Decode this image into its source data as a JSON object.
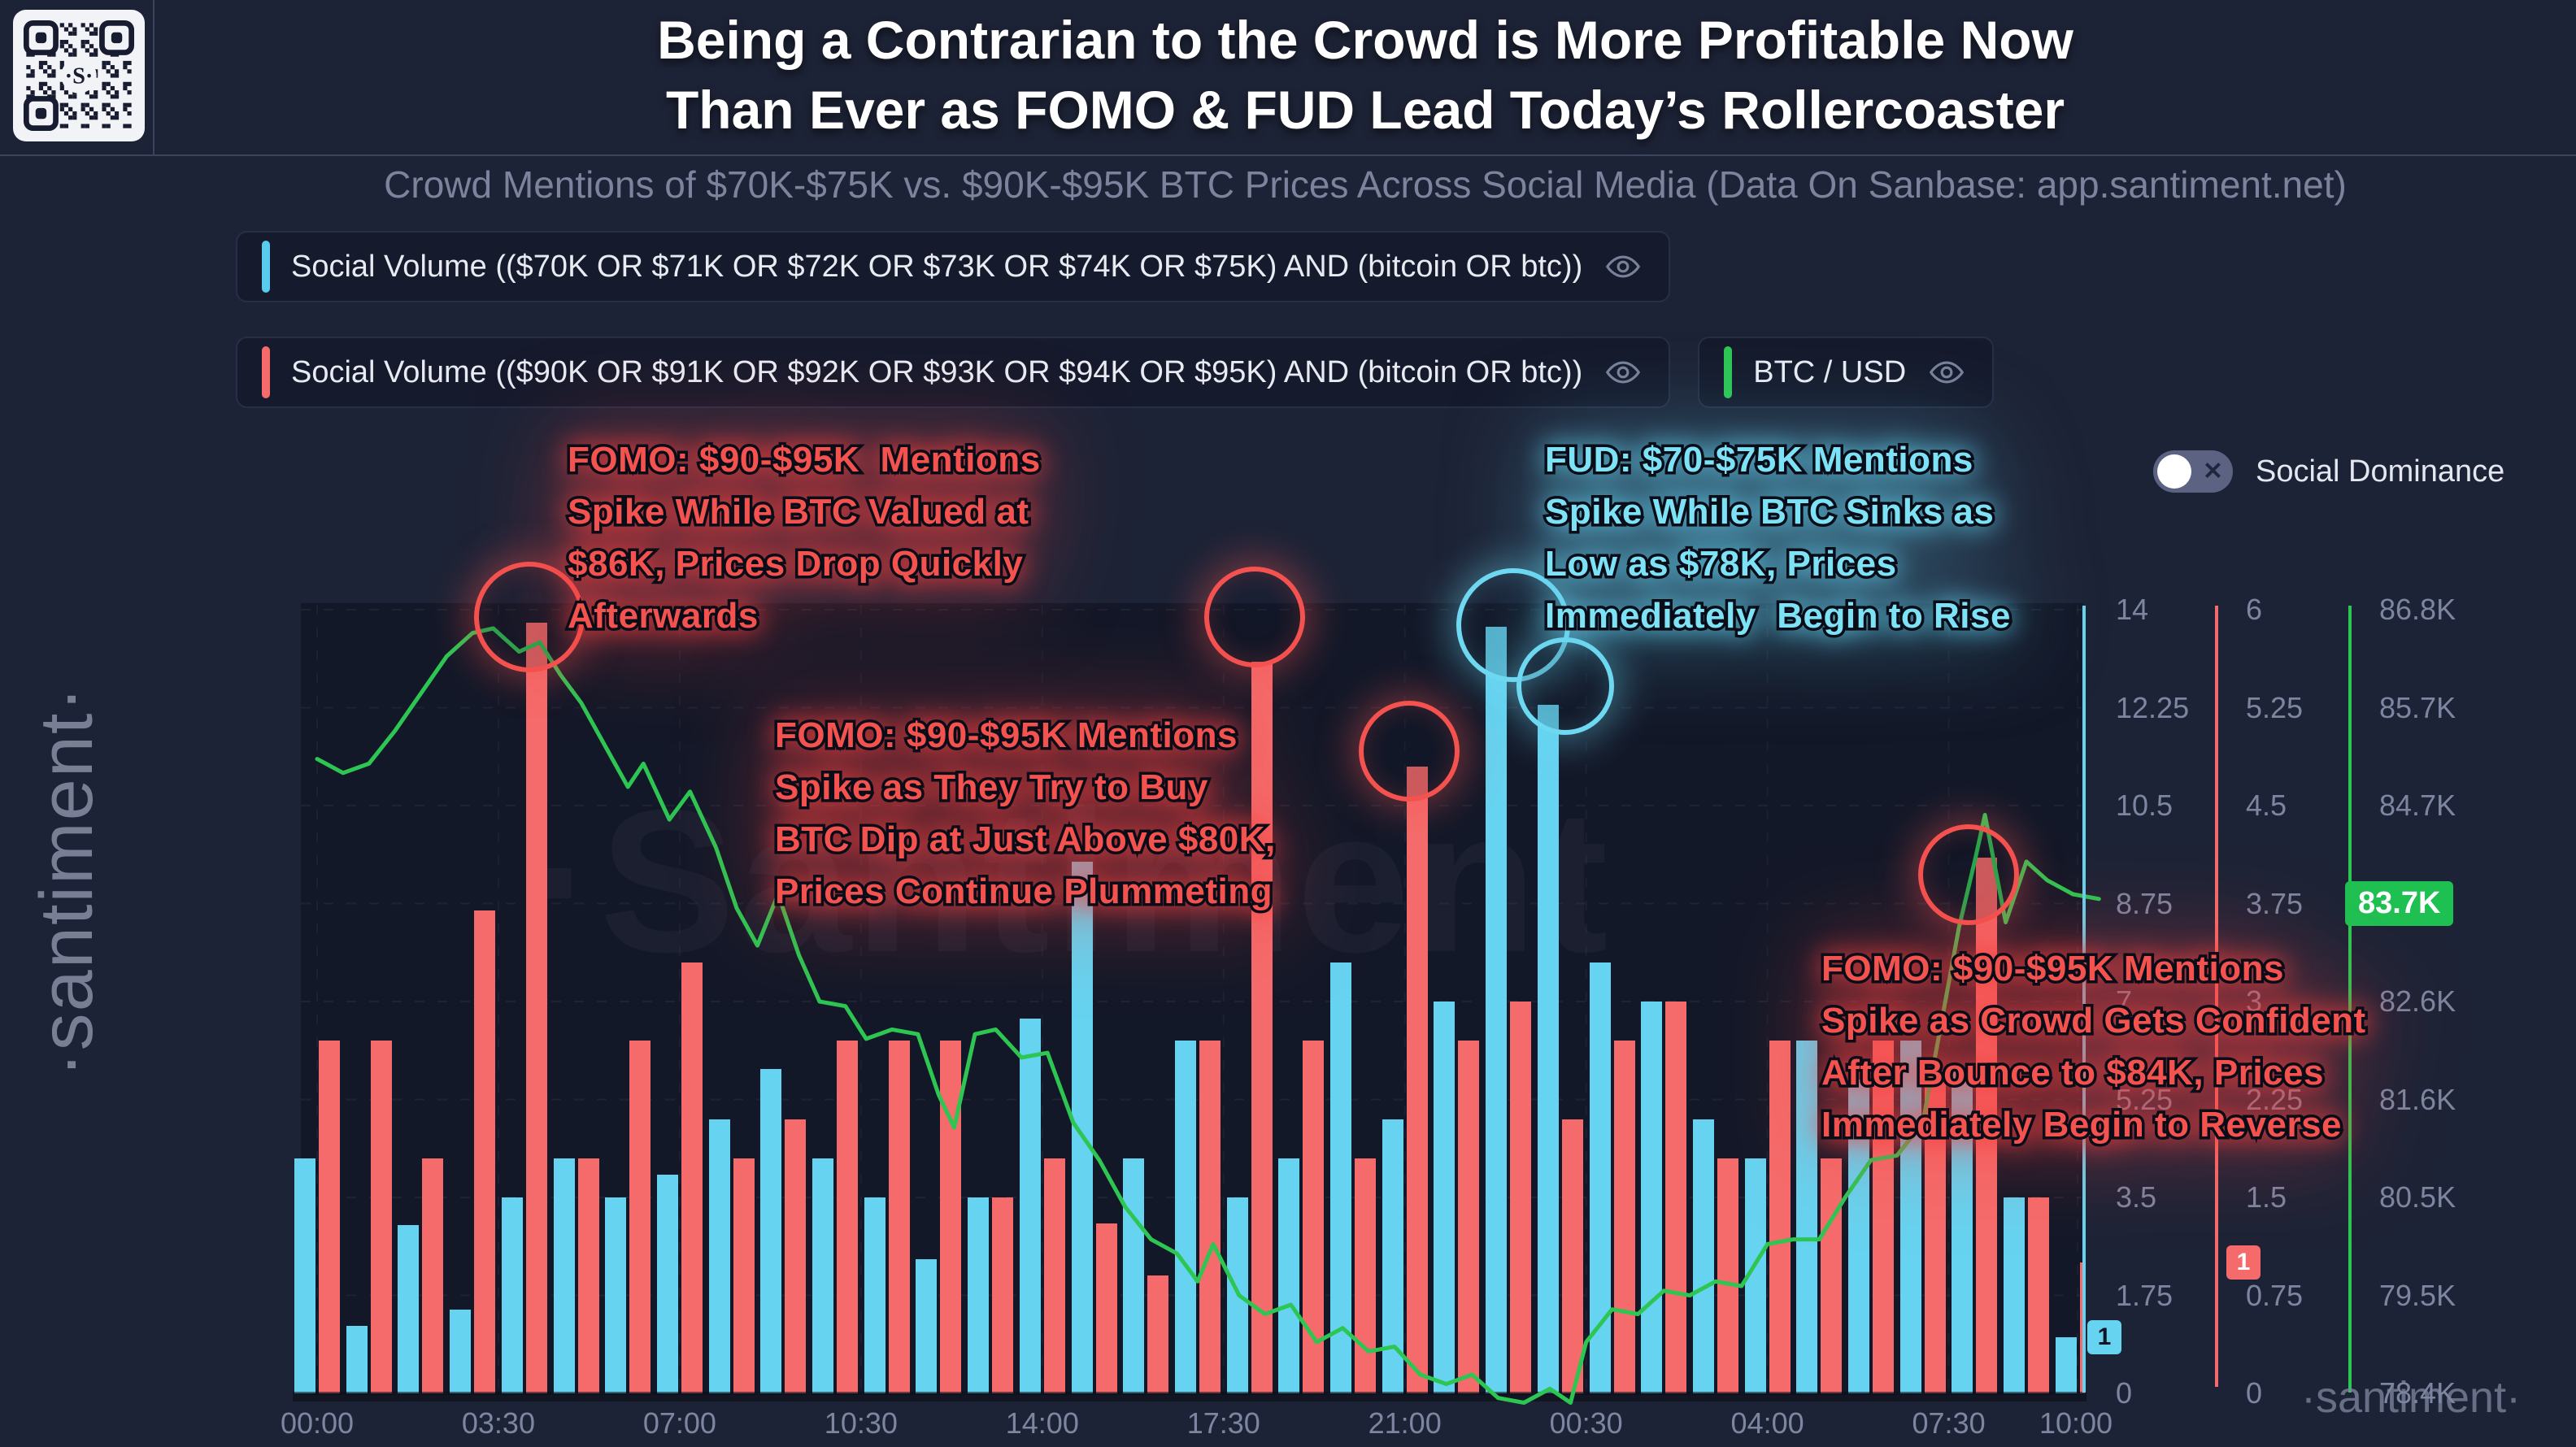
{
  "header": {
    "title_line1": "Being a Contrarian to the Crowd is More Profitable Now",
    "title_line2": "Than Ever as FOMO & FUD Lead Today’s Rollercoaster",
    "subtitle": "Crowd Mentions of $70K-$75K vs. $90K-$95K BTC Prices Across Social Media (Data On Sanbase: app.santiment.net)"
  },
  "legend": {
    "social_volume_70_75": {
      "label": "Social Volume (($70K OR $71K OR $72K OR $73K OR $74K OR $75K) AND (bitcoin OR btc))",
      "accent_color": "#59ccec"
    },
    "social_volume_90_95": {
      "label": "Social Volume (($90K OR $91K OR $92K OR $93K OR $94K OR $95K) AND (bitcoin OR btc))",
      "accent_color": "#f56b6b"
    },
    "btc_usd": {
      "label": "BTC / USD",
      "accent_color": "#2dc653"
    }
  },
  "social_dominance": {
    "label": "Social Dominance",
    "toggle_state": "off"
  },
  "annotations": {
    "fomo_86k": {
      "color": "#f4524f",
      "text": "FOMO: $90-$95K  Mentions\nSpike While BTC Valued at\n$86K, Prices Drop Quickly\nAfterwards"
    },
    "fud_78k": {
      "color": "#7de2f6",
      "text": "FUD: $70-$75K Mentions\nSpike While BTC Sinks as\nLow as $78K, Prices\nImmediately  Begin to Rise"
    },
    "fomo_80k": {
      "color": "#f4524f",
      "text": "FOMO: $90-$95K Mentions\nSpike as They Try to Buy\nBTC Dip at Just Above $80K,\nPrices Continue Plummeting"
    },
    "fomo_84k": {
      "color": "#f4524f",
      "text": "FOMO: $90-$95K Mentions\nSpike as Crowd Gets Confident\nAfter Bounce to $84K, Prices\nImmediately Begin to Reverse"
    }
  },
  "watermark": {
    "center": "·Santiment",
    "sidebar": "·santiment·",
    "bottom_right": "·santiment·"
  },
  "colors": {
    "background": "#1d2336",
    "plot": "#131828",
    "cyan_bar": "#66d3f0",
    "red_bar": "#f56b6b",
    "green_line": "#2dc653",
    "axis_text": "#7d86a0",
    "price_badge": "#1fc052"
  },
  "chart_data": {
    "type": "bar",
    "title": "Crowd Mentions of $70K-$75K vs. $90K-$95K BTC Prices Across Social Media",
    "x_axis": {
      "tick_labels": [
        "00:00",
        "03:30",
        "07:00",
        "10:30",
        "14:00",
        "17:30",
        "21:00",
        "00:30",
        "04:00",
        "07:30",
        "10:00"
      ],
      "tick_hours": [
        0,
        3.5,
        7,
        10.5,
        14,
        17.5,
        21,
        24.5,
        28,
        31.5,
        34.5
      ],
      "hours_span": 34.5
    },
    "axes": {
      "social_volume_70_75": {
        "color": "#66d3f0",
        "range": [
          0,
          14
        ],
        "ticks": [
          "14",
          "12.25",
          "10.5",
          "8.75",
          "7",
          "5.25",
          "3.5",
          "1.75",
          "0"
        ],
        "latest_badge": "1"
      },
      "social_volume_90_95": {
        "color": "#f56b6b",
        "range": [
          0,
          6
        ],
        "ticks": [
          "6",
          "5.25",
          "4.5",
          "3.75",
          "3",
          "2.25",
          "1.5",
          "0.75",
          "0"
        ],
        "latest_badge": "1"
      },
      "btc_usd": {
        "color": "#2dc653",
        "range_k": [
          78.4,
          86.8
        ],
        "ticks": [
          "86.8K",
          "85.7K",
          "84.7K",
          "83.7K",
          "82.6K",
          "81.6K",
          "80.5K",
          "79.5K",
          "78.4K"
        ],
        "latest_badge": "83.7K"
      }
    },
    "series": [
      {
        "name": "Social Volume $70K-$75K mentions",
        "type": "bar",
        "color": "#66d3f0",
        "values": [
          4.2,
          1.2,
          3.0,
          1.5,
          3.5,
          4.2,
          3.5,
          3.9,
          4.9,
          5.8,
          4.2,
          3.5,
          2.4,
          3.5,
          6.7,
          9.5,
          4.2,
          6.3,
          3.5,
          4.2,
          7.7,
          4.9,
          7.0,
          13.7,
          12.3,
          7.7,
          7.0,
          4.9,
          4.2,
          6.3,
          5.6,
          6.3,
          5.8,
          3.5,
          1.0
        ]
      },
      {
        "name": "Social Volume $90K-$95K mentions",
        "type": "bar",
        "color": "#f56b6b",
        "values": [
          2.7,
          2.7,
          1.8,
          3.7,
          5.9,
          1.8,
          2.7,
          3.3,
          1.8,
          2.1,
          2.7,
          2.7,
          2.7,
          1.5,
          1.8,
          1.3,
          0.9,
          2.7,
          5.6,
          2.7,
          1.8,
          4.8,
          2.7,
          3.0,
          2.1,
          2.7,
          3.0,
          1.8,
          2.7,
          1.8,
          2.7,
          2.4,
          4.1,
          1.5,
          1.0
        ]
      },
      {
        "name": "BTC / USD",
        "type": "line",
        "color": "#2dc653",
        "points_hour_priceK": [
          [
            0,
            85.2
          ],
          [
            0.5,
            85.05
          ],
          [
            1,
            85.15
          ],
          [
            1.5,
            85.5
          ],
          [
            2,
            85.9
          ],
          [
            2.5,
            86.3
          ],
          [
            3,
            86.55
          ],
          [
            3.4,
            86.6
          ],
          [
            3.9,
            86.35
          ],
          [
            4.3,
            86.45
          ],
          [
            4.7,
            86.1
          ],
          [
            5.1,
            85.8
          ],
          [
            5.6,
            85.3
          ],
          [
            6,
            84.9
          ],
          [
            6.3,
            85.15
          ],
          [
            6.8,
            84.55
          ],
          [
            7.2,
            84.85
          ],
          [
            7.7,
            84.25
          ],
          [
            8.1,
            83.6
          ],
          [
            8.5,
            83.2
          ],
          [
            8.9,
            83.75
          ],
          [
            9.3,
            83.1
          ],
          [
            9.7,
            82.6
          ],
          [
            10.2,
            82.55
          ],
          [
            10.6,
            82.2
          ],
          [
            11.1,
            82.3
          ],
          [
            11.6,
            82.25
          ],
          [
            12,
            81.6
          ],
          [
            12.3,
            81.25
          ],
          [
            12.7,
            82.25
          ],
          [
            13.1,
            82.3
          ],
          [
            13.6,
            82.0
          ],
          [
            14.1,
            82.05
          ],
          [
            14.6,
            81.3
          ],
          [
            15.1,
            80.9
          ],
          [
            15.6,
            80.4
          ],
          [
            16.1,
            80.05
          ],
          [
            16.6,
            79.9
          ],
          [
            17,
            79.6
          ],
          [
            17.3,
            80.0
          ],
          [
            17.8,
            79.45
          ],
          [
            18.3,
            79.25
          ],
          [
            18.8,
            79.35
          ],
          [
            19.3,
            78.95
          ],
          [
            19.8,
            79.1
          ],
          [
            20.3,
            78.85
          ],
          [
            20.8,
            78.9
          ],
          [
            21.3,
            78.6
          ],
          [
            21.8,
            78.5
          ],
          [
            22.3,
            78.6
          ],
          [
            22.8,
            78.35
          ],
          [
            23.3,
            78.3
          ],
          [
            23.8,
            78.45
          ],
          [
            24.2,
            78.3
          ],
          [
            24.5,
            78.95
          ],
          [
            25,
            79.3
          ],
          [
            25.5,
            79.25
          ],
          [
            26,
            79.5
          ],
          [
            26.5,
            79.45
          ],
          [
            27,
            79.6
          ],
          [
            27.5,
            79.55
          ],
          [
            28,
            80.0
          ],
          [
            28.5,
            80.05
          ],
          [
            29,
            80.05
          ],
          [
            29.5,
            80.5
          ],
          [
            30,
            80.9
          ],
          [
            30.5,
            80.95
          ],
          [
            31,
            81.3
          ],
          [
            31.4,
            82.5
          ],
          [
            31.7,
            83.4
          ],
          [
            32,
            84.1
          ],
          [
            32.2,
            84.6
          ],
          [
            32.6,
            83.45
          ],
          [
            33,
            84.1
          ],
          [
            33.4,
            83.9
          ],
          [
            33.9,
            83.75
          ],
          [
            34.4,
            83.7
          ]
        ]
      }
    ],
    "current_values": {
      "price_label": "83.7K",
      "cyan_label": "1",
      "red_label": "1"
    },
    "highlight_circles": [
      {
        "x": 645,
        "y": 753,
        "r": 62,
        "color": "#f4524f"
      },
      {
        "x": 1537,
        "y": 753,
        "r": 56,
        "color": "#f4524f"
      },
      {
        "x": 1727,
        "y": 918,
        "r": 56,
        "color": "#f4524f"
      },
      {
        "x": 1855,
        "y": 763,
        "r": 64,
        "color": "#6fd9f2"
      },
      {
        "x": 1919,
        "y": 838,
        "r": 54,
        "color": "#6fd9f2"
      },
      {
        "x": 2415,
        "y": 1070,
        "r": 56,
        "color": "#f4524f"
      }
    ]
  }
}
